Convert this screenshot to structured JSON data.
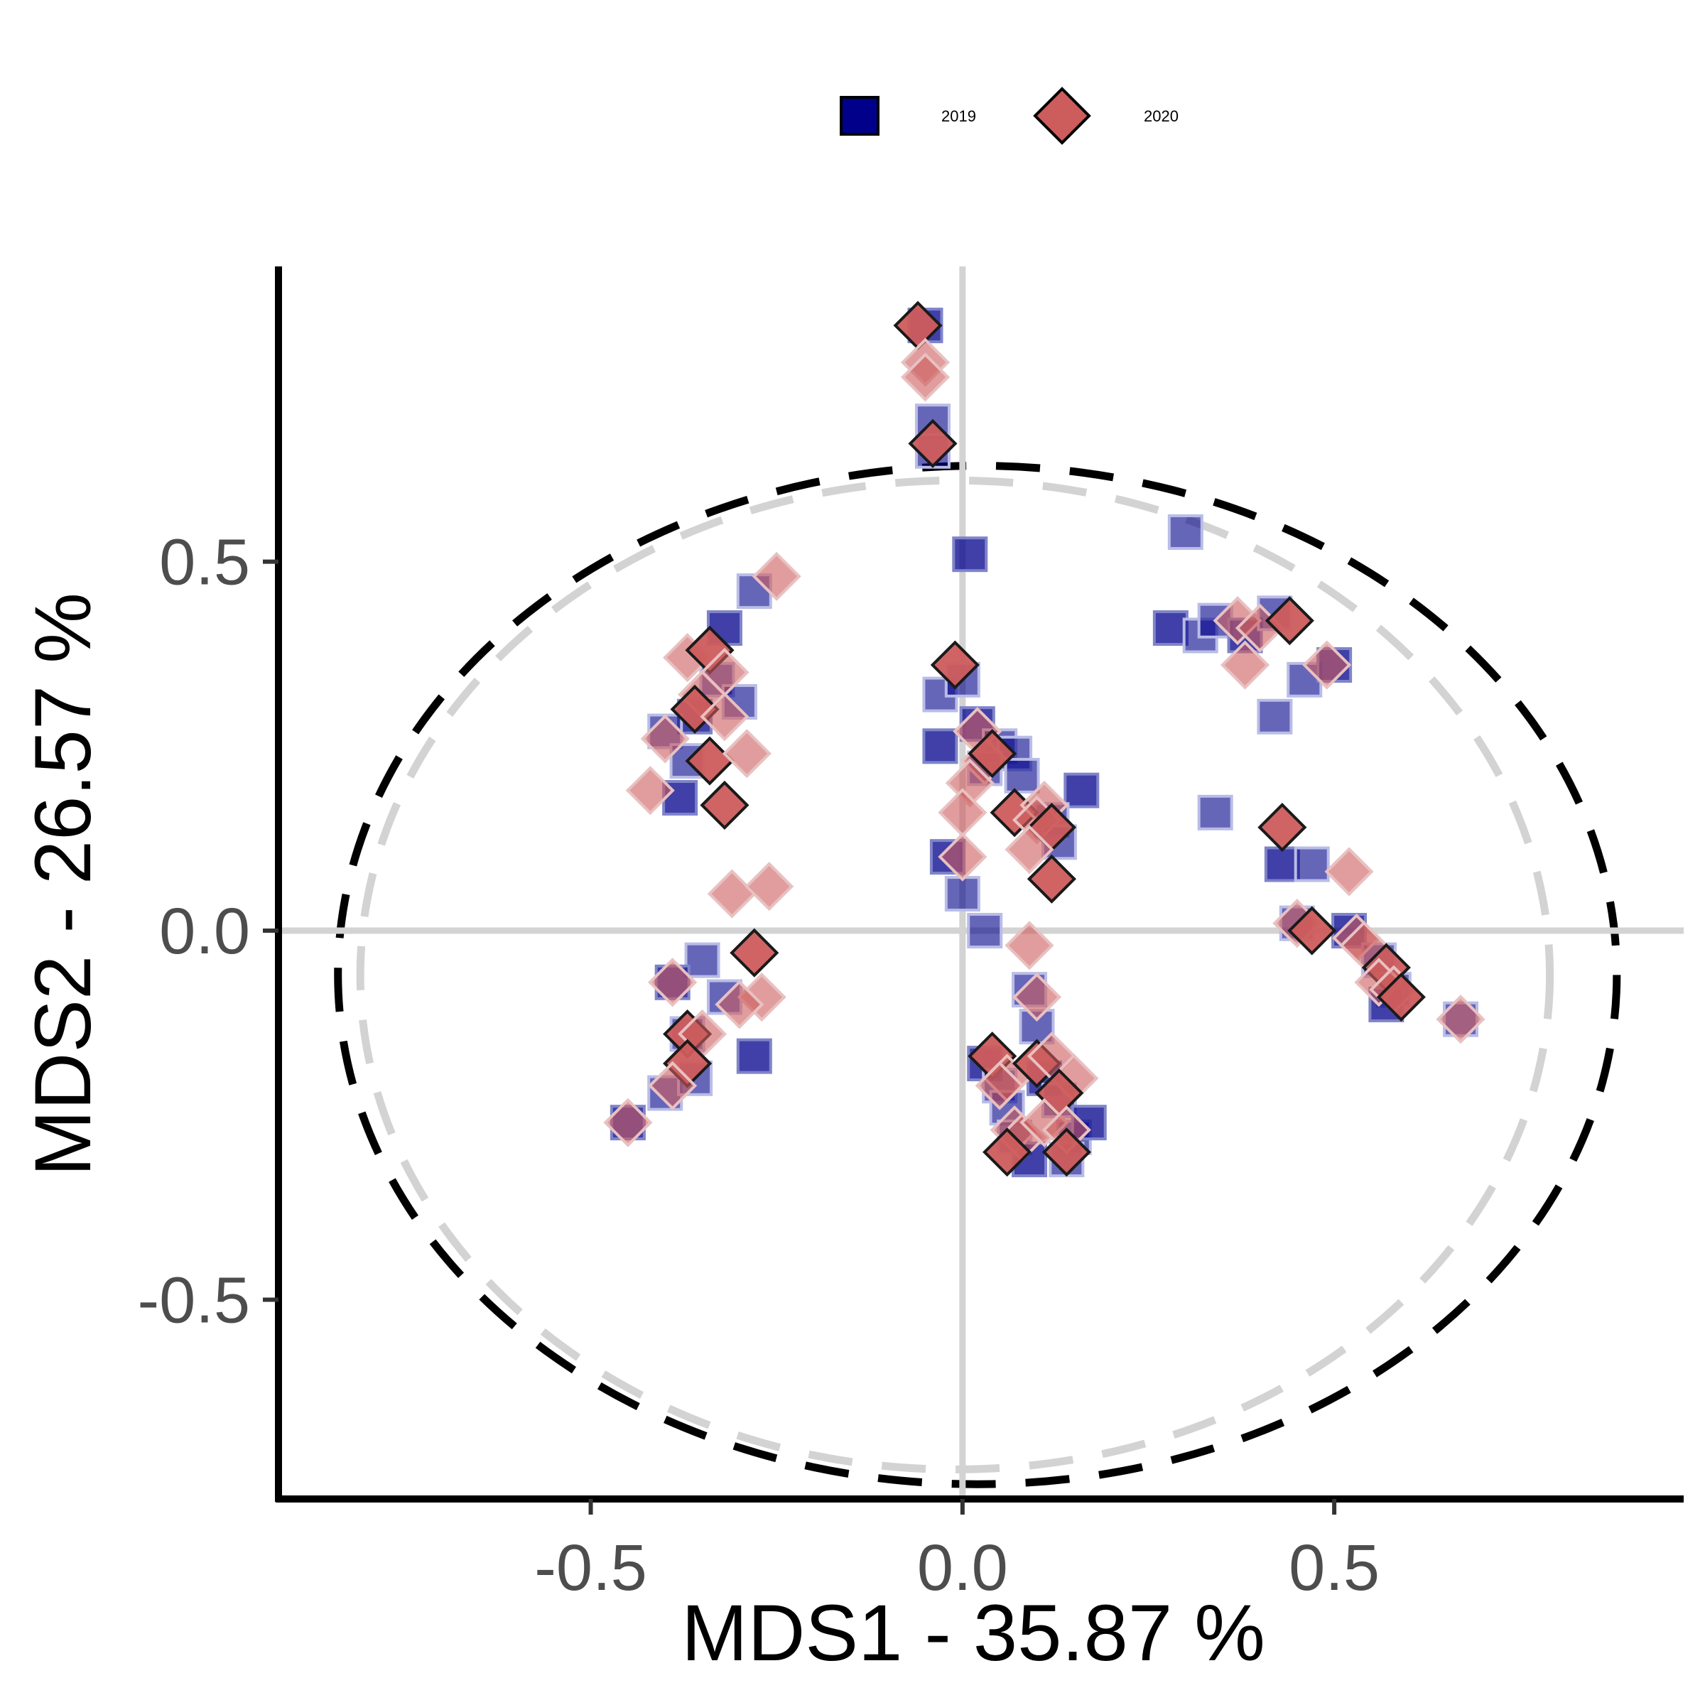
{
  "chart_data": {
    "type": "scatter",
    "title": "",
    "xlabel": "MDS1 - 35.87 %",
    "ylabel": "MDS2 - 26.57 %",
    "xlim": [
      -0.92,
      0.97
    ],
    "ylim": [
      -0.77,
      0.9
    ],
    "xticks": [
      -0.5,
      0.0,
      0.5
    ],
    "yticks": [
      -0.5,
      0.0,
      0.5
    ],
    "xtick_labels": [
      "-0.5",
      "0.0",
      "0.5"
    ],
    "ytick_labels": [
      "-0.5",
      "0.0",
      "0.5"
    ],
    "reference_lines": {
      "x": 0,
      "y": 0,
      "color": "#d3d3d3"
    },
    "grid": false,
    "legend_position": "top",
    "series": [
      {
        "name": "2019",
        "marker": "square",
        "color": "#00008B",
        "points": [
          [
            -0.05,
            0.82
          ],
          [
            -0.04,
            0.69
          ],
          [
            -0.04,
            0.65
          ],
          [
            0.01,
            0.51
          ],
          [
            0.3,
            0.54
          ],
          [
            -0.28,
            0.46
          ],
          [
            -0.32,
            0.41
          ],
          [
            -0.33,
            0.34
          ],
          [
            -0.3,
            0.31
          ],
          [
            -0.36,
            0.29
          ],
          [
            -0.4,
            0.27
          ],
          [
            -0.37,
            0.23
          ],
          [
            -0.38,
            0.18
          ],
          [
            -0.03,
            0.32
          ],
          [
            0.0,
            0.34
          ],
          [
            0.02,
            0.28
          ],
          [
            0.05,
            0.25
          ],
          [
            0.07,
            0.24
          ],
          [
            -0.03,
            0.25
          ],
          [
            0.03,
            0.22
          ],
          [
            0.08,
            0.21
          ],
          [
            0.16,
            0.19
          ],
          [
            0.12,
            0.15
          ],
          [
            0.13,
            0.12
          ],
          [
            -0.02,
            0.1
          ],
          [
            0.0,
            0.05
          ],
          [
            0.03,
            0.0
          ],
          [
            0.28,
            0.41
          ],
          [
            0.32,
            0.4
          ],
          [
            0.34,
            0.42
          ],
          [
            0.38,
            0.4
          ],
          [
            0.42,
            0.43
          ],
          [
            0.46,
            0.34
          ],
          [
            0.5,
            0.36
          ],
          [
            0.42,
            0.29
          ],
          [
            0.34,
            0.16
          ],
          [
            0.43,
            0.09
          ],
          [
            0.47,
            0.09
          ],
          [
            0.45,
            0.01
          ],
          [
            0.52,
            0.0
          ],
          [
            0.56,
            -0.04
          ],
          [
            0.58,
            -0.08
          ],
          [
            0.57,
            -0.1
          ],
          [
            0.67,
            -0.12
          ],
          [
            -0.35,
            -0.04
          ],
          [
            -0.39,
            -0.07
          ],
          [
            -0.32,
            -0.09
          ],
          [
            -0.37,
            -0.14
          ],
          [
            -0.28,
            -0.17
          ],
          [
            -0.4,
            -0.22
          ],
          [
            -0.36,
            -0.2
          ],
          [
            -0.45,
            -0.26
          ],
          [
            0.09,
            -0.08
          ],
          [
            0.1,
            -0.13
          ],
          [
            0.03,
            -0.18
          ],
          [
            0.05,
            -0.21
          ],
          [
            0.06,
            -0.24
          ],
          [
            0.11,
            -0.2
          ],
          [
            0.13,
            -0.23
          ],
          [
            0.07,
            -0.28
          ],
          [
            0.09,
            -0.31
          ],
          [
            0.15,
            -0.28
          ],
          [
            0.14,
            -0.31
          ],
          [
            0.17,
            -0.26
          ]
        ]
      },
      {
        "name": "2020",
        "marker": "diamond",
        "color": "#CD5C5C",
        "points": [
          [
            -0.06,
            0.82
          ],
          [
            -0.05,
            0.77
          ],
          [
            -0.05,
            0.75
          ],
          [
            -0.04,
            0.66
          ],
          [
            -0.25,
            0.48
          ],
          [
            -0.37,
            0.37
          ],
          [
            -0.34,
            0.38
          ],
          [
            -0.32,
            0.35
          ],
          [
            -0.35,
            0.32
          ],
          [
            -0.36,
            0.3
          ],
          [
            -0.32,
            0.29
          ],
          [
            -0.4,
            0.26
          ],
          [
            -0.34,
            0.23
          ],
          [
            -0.29,
            0.24
          ],
          [
            -0.42,
            0.19
          ],
          [
            -0.32,
            0.17
          ],
          [
            -0.31,
            0.05
          ],
          [
            -0.26,
            0.06
          ],
          [
            -0.28,
            -0.03
          ],
          [
            -0.27,
            -0.09
          ],
          [
            -0.39,
            -0.07
          ],
          [
            -0.37,
            -0.14
          ],
          [
            -0.35,
            -0.14
          ],
          [
            -0.3,
            -0.1
          ],
          [
            -0.37,
            -0.18
          ],
          [
            -0.39,
            -0.21
          ],
          [
            -0.45,
            -0.26
          ],
          [
            -0.01,
            0.36
          ],
          [
            0.02,
            0.27
          ],
          [
            0.03,
            0.23
          ],
          [
            0.04,
            0.24
          ],
          [
            0.01,
            0.2
          ],
          [
            0.0,
            0.16
          ],
          [
            0.07,
            0.16
          ],
          [
            0.11,
            0.17
          ],
          [
            0.1,
            0.15
          ],
          [
            0.12,
            0.14
          ],
          [
            0.09,
            0.11
          ],
          [
            0.0,
            0.1
          ],
          [
            0.12,
            0.07
          ],
          [
            0.09,
            -0.02
          ],
          [
            0.1,
            -0.09
          ],
          [
            0.04,
            -0.17
          ],
          [
            0.06,
            -0.2
          ],
          [
            0.05,
            -0.21
          ],
          [
            0.1,
            -0.18
          ],
          [
            0.12,
            -0.17
          ],
          [
            0.15,
            -0.2
          ],
          [
            0.13,
            -0.22
          ],
          [
            0.07,
            -0.27
          ],
          [
            0.08,
            -0.28
          ],
          [
            0.06,
            -0.3
          ],
          [
            0.11,
            -0.26
          ],
          [
            0.14,
            -0.27
          ],
          [
            0.14,
            -0.3
          ],
          [
            0.37,
            0.42
          ],
          [
            0.4,
            0.41
          ],
          [
            0.44,
            0.42
          ],
          [
            0.49,
            0.36
          ],
          [
            0.38,
            0.36
          ],
          [
            0.43,
            0.14
          ],
          [
            0.52,
            0.08
          ],
          [
            0.45,
            0.01
          ],
          [
            0.47,
            0.0
          ],
          [
            0.53,
            -0.01
          ],
          [
            0.54,
            -0.02
          ],
          [
            0.57,
            -0.05
          ],
          [
            0.56,
            -0.07
          ],
          [
            0.58,
            -0.08
          ],
          [
            0.59,
            -0.09
          ],
          [
            0.67,
            -0.12
          ]
        ]
      }
    ],
    "ellipses": [
      {
        "color": "#000000",
        "center": [
          0.02,
          -0.06
        ],
        "rx": 0.86,
        "ry": 0.69,
        "dash": "dashed"
      },
      {
        "color": "#d3d3d3",
        "center": [
          -0.01,
          -0.06
        ],
        "rx": 0.8,
        "ry": 0.67,
        "dash": "dashed"
      }
    ],
    "legend": [
      {
        "label": "2019",
        "marker": "square",
        "color": "#00008B"
      },
      {
        "label": "2020",
        "marker": "diamond",
        "color": "#CD5C5C"
      }
    ]
  }
}
